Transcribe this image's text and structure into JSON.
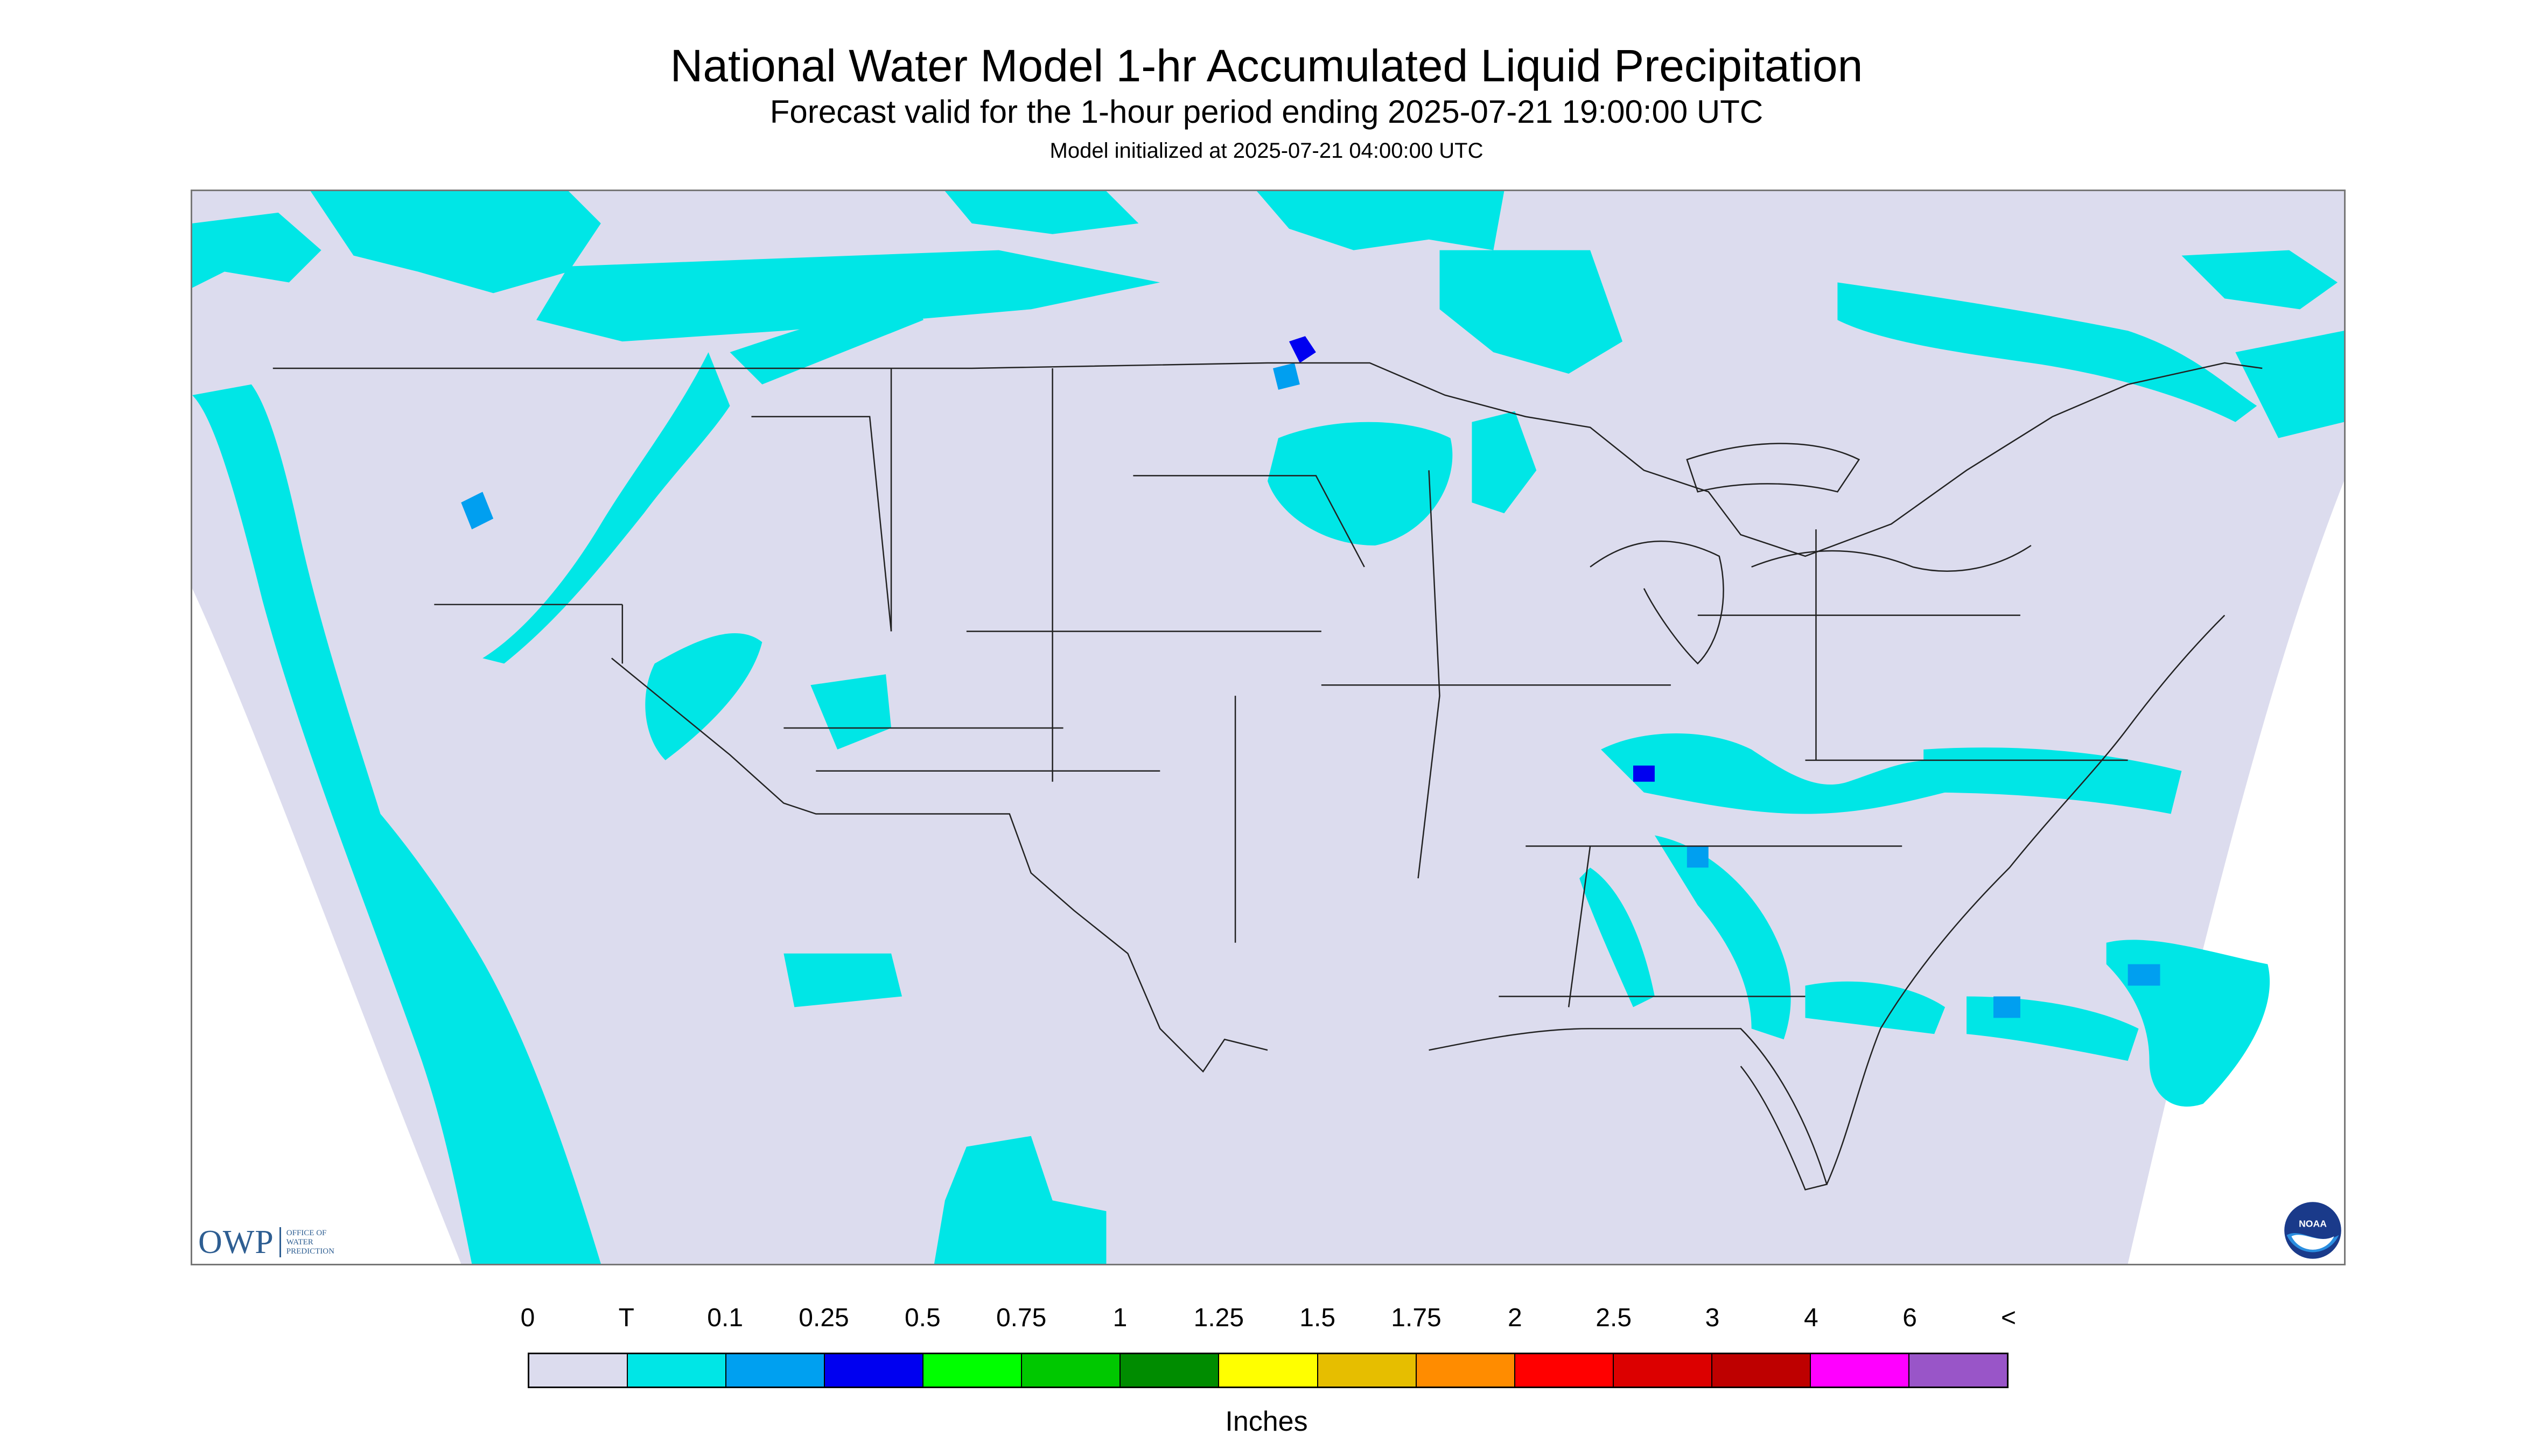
{
  "header": {
    "title": "National Water Model 1-hr Accumulated Liquid Precipitation",
    "subtitle": "Forecast valid for the 1-hour period ending 2025-07-21 19:00:00 UTC",
    "init": "Model initialized at 2025-07-21 04:00:00 UTC"
  },
  "map": {
    "background_color": "#dcdcee",
    "outside_color": "#ffffff",
    "precip_light_color": "#00e6e6",
    "precip_med_color": "#009ff0",
    "precip_heavy_color": "#0000f0",
    "border_color": "#222222"
  },
  "logos": {
    "owp_text": "OWP",
    "owp_sub_1": "OFFICE OF",
    "owp_sub_2": "WATER",
    "owp_sub_3": "PREDICTION",
    "noaa_text": "NOAA"
  },
  "legend": {
    "labels": [
      "0",
      "T",
      "0.1",
      "0.25",
      "0.5",
      "0.75",
      "1",
      "1.25",
      "1.5",
      "1.75",
      "2",
      "2.5",
      "3",
      "4",
      "6",
      "<"
    ],
    "colors": [
      "#dcdcee",
      "#00e6e6",
      "#00a0f0",
      "#0000f0",
      "#00ff00",
      "#00c800",
      "#008c00",
      "#ffff00",
      "#e6be00",
      "#ff8c00",
      "#ff0000",
      "#dc0000",
      "#be0000",
      "#ff00ff",
      "#9955c8"
    ],
    "units": "Inches"
  }
}
